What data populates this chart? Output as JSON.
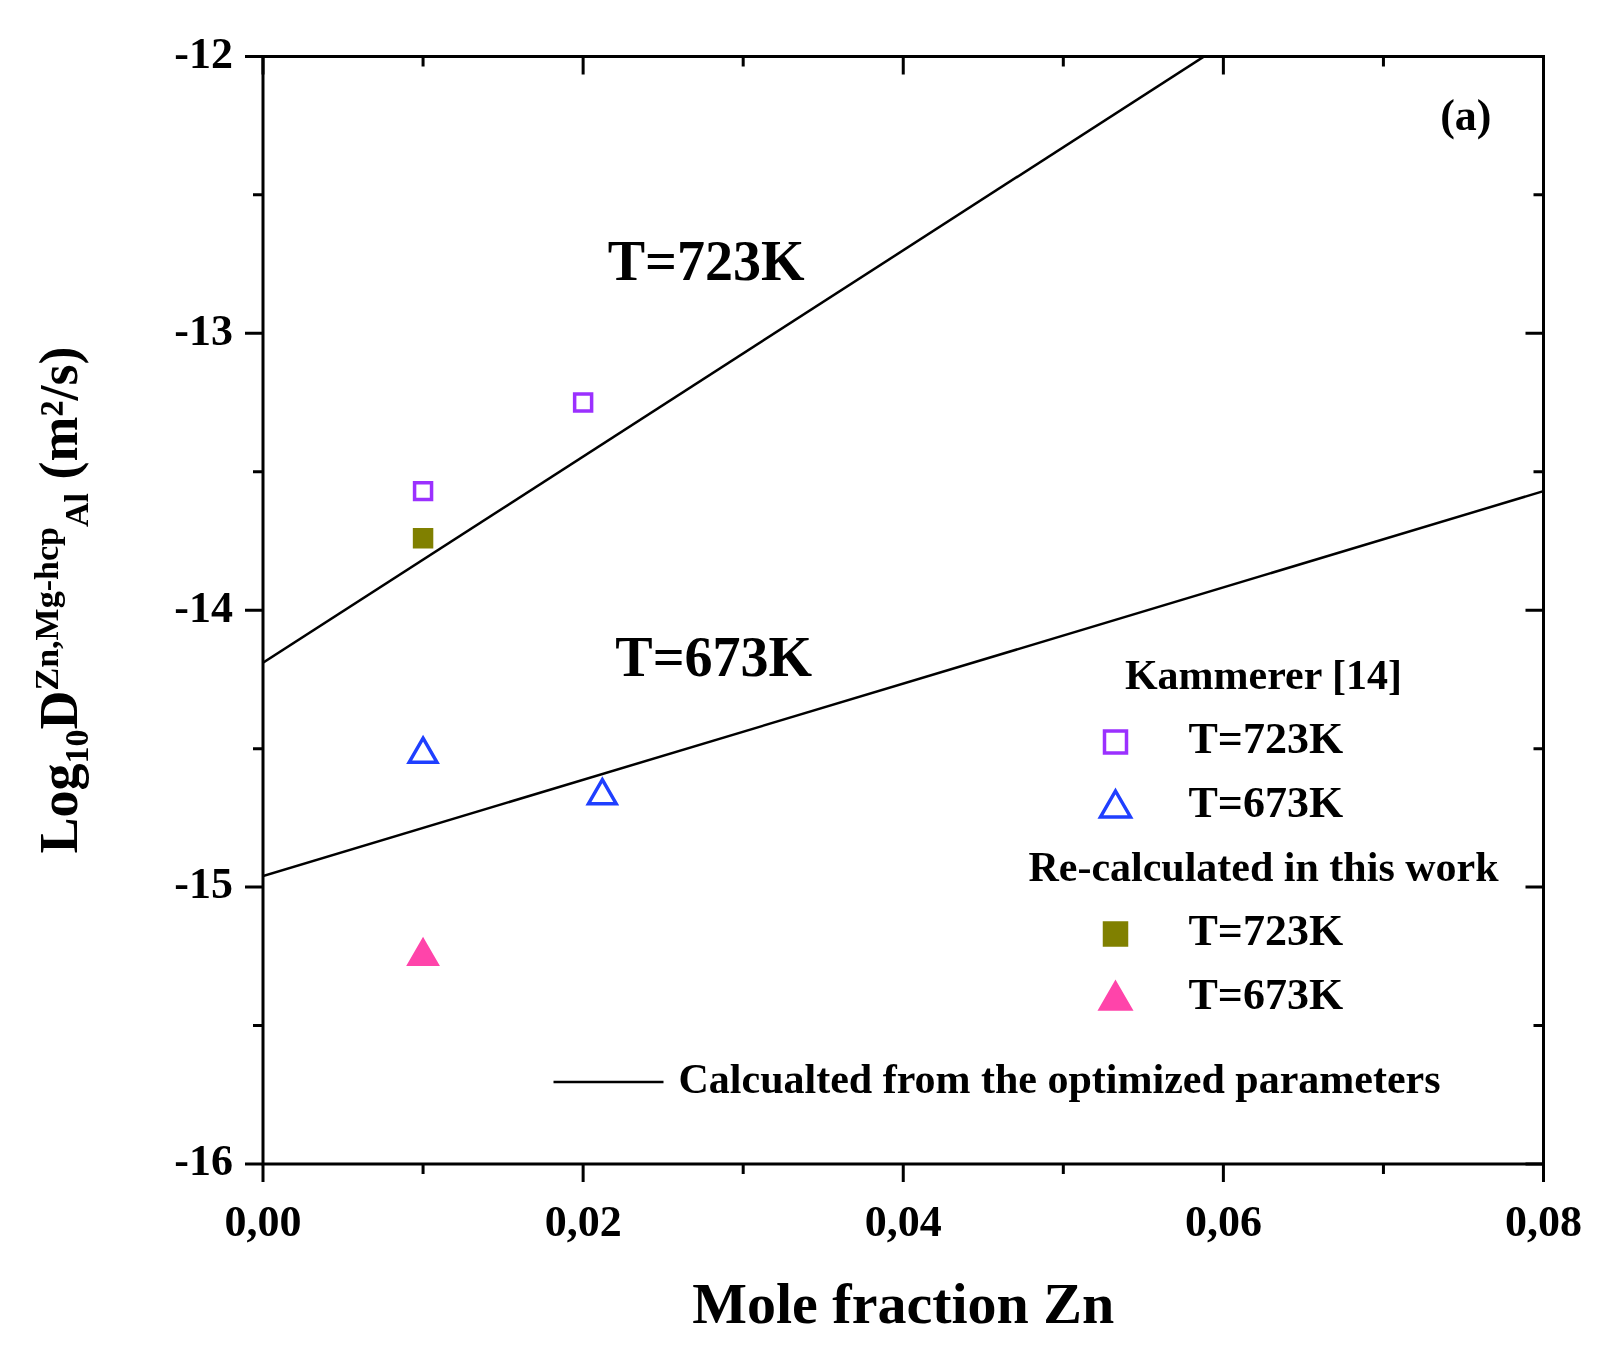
{
  "chart_data": {
    "type": "scatter",
    "xlabel": "Mole fraction Zn",
    "ylabel": "Log$_{10}$D$^{Zn,Mg-hcp}$$_{Al}$ (m²/s)",
    "xlim": [
      0,
      0.08
    ],
    "ylim": [
      -16,
      -12
    ],
    "xticks": [
      {
        "value": 0,
        "label": "0,00"
      },
      {
        "value": 0.01,
        "label": null
      },
      {
        "value": 0.02,
        "label": "0,02"
      },
      {
        "value": 0.03,
        "label": null
      },
      {
        "value": 0.04,
        "label": "0,04"
      },
      {
        "value": 0.05,
        "label": null
      },
      {
        "value": 0.06,
        "label": "0,06"
      },
      {
        "value": 0.07,
        "label": null
      },
      {
        "value": 0.08,
        "label": "0,08"
      }
    ],
    "yticks": [
      -16,
      {
        "value": -15.5,
        "label": null
      },
      -15,
      {
        "value": -14.5,
        "label": null
      },
      -14,
      {
        "value": -13.5,
        "label": null
      },
      -13,
      {
        "value": -12.5,
        "label": null
      },
      -12
    ],
    "legend": "bottom right",
    "grid": false,
    "annotations": [
      "(a)",
      "Kammerer [14]",
      "Re-calculated in this work",
      "T=723K",
      "T=673K"
    ],
    "series": [
      {
        "name": "T=723K",
        "marker": "square",
        "color": "#9b30ff",
        "x": [
          0.01,
          0.02
        ],
        "values": [
          -13.57,
          -13.25
        ]
      },
      {
        "name": "T=673K",
        "marker": "triangle",
        "color": "#1f3fff",
        "x": [
          0.01,
          0.0212
        ],
        "values": [
          -14.52,
          -14.67
        ]
      },
      {
        "name": "T=723K",
        "marker": "square",
        "color": "#808000",
        "x": [
          0.01
        ],
        "values": [
          -13.74
        ]
      },
      {
        "name": "T=673K",
        "marker": "triangle",
        "color": "#ff44aa",
        "x": [
          0.01
        ],
        "values": [
          -15.25
        ]
      },
      {
        "name": "Calcualted from the optimized parameters",
        "type": "line",
        "color": "#000000",
        "x": [
          0,
          0.0588
        ],
        "values": [
          -14.19,
          -12
        ]
      },
      {
        "type": "line",
        "color": "#000000",
        "x": [
          0,
          0.08
        ],
        "values": [
          -14.96,
          -13.57
        ]
      }
    ]
  }
}
